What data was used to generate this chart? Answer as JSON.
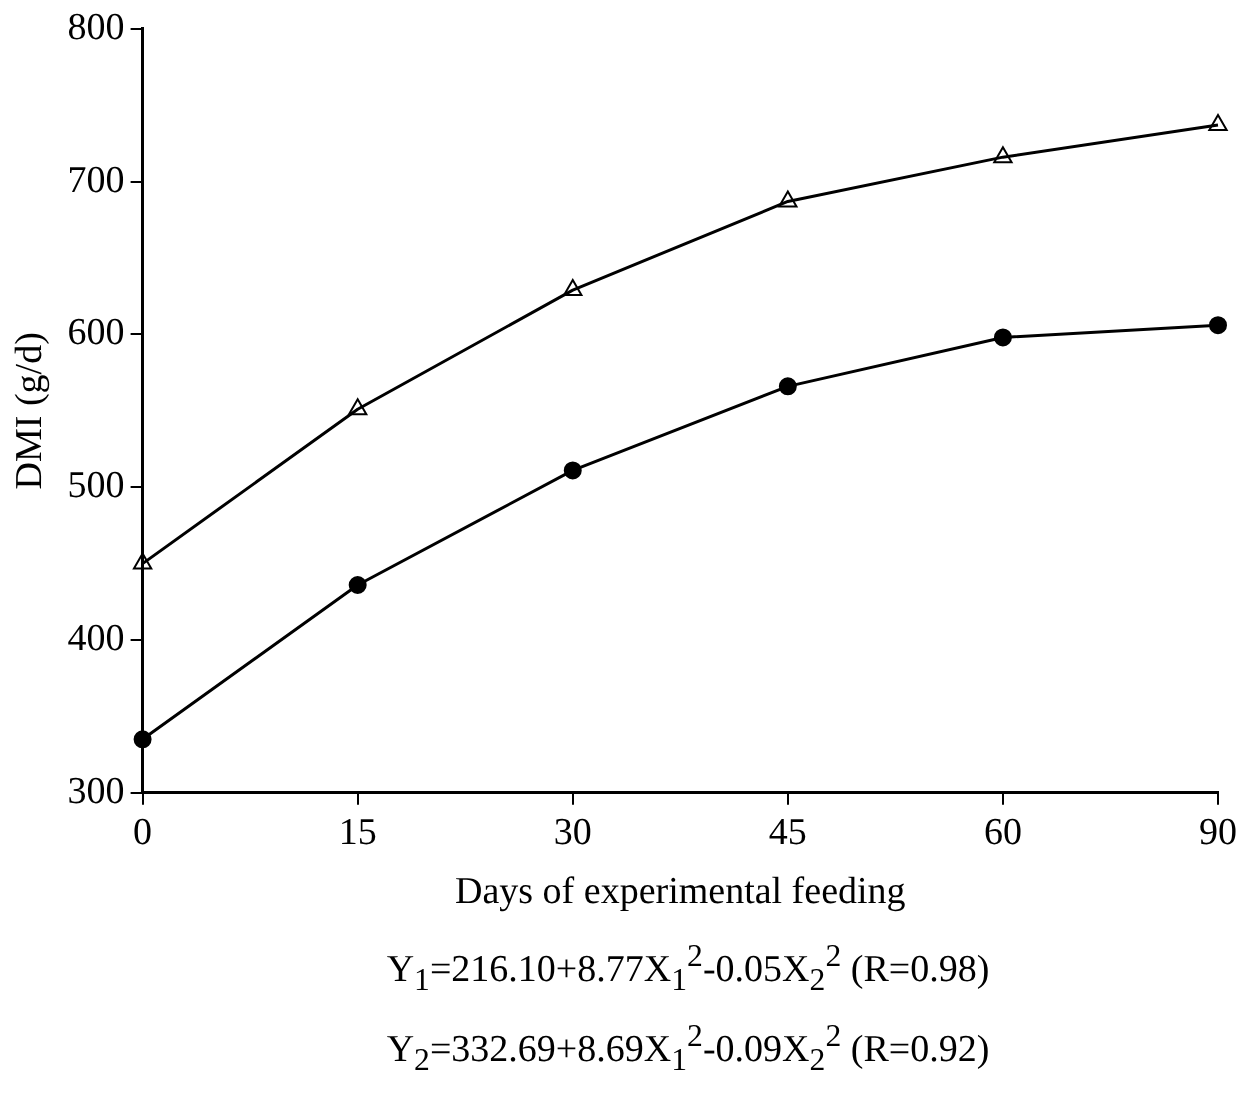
{
  "chart_data": {
    "type": "line",
    "xlabel": "Days of experimental feeding",
    "ylabel": "DMI (g/d)",
    "categories": [
      "0",
      "15",
      "30",
      "45",
      "60",
      "90"
    ],
    "series": [
      {
        "color": "#000000",
        "marker": "triangle",
        "values": [
          450,
          551,
          629,
          687,
          716,
          737
        ]
      },
      {
        "color": "#000000",
        "marker": "circle",
        "values": [
          335,
          436,
          511,
          566,
          598,
          606
        ]
      }
    ],
    "ylim": [
      300,
      800
    ],
    "yticks": [
      300,
      400,
      500,
      600,
      700,
      800
    ],
    "grid": false,
    "legend": false,
    "line_style": "solid",
    "annotations": [
      "Y$_{1}$=216.10+8.77X$_{1}$$^{2}$-0.05X$_{2}$$^{2}$ (R=0.98)",
      "Y$_{2}$=332.69+8.69X$_{1}$$^{2}$-0.09X$_{2}$$^{2}$ (R=0.92)"
    ]
  }
}
